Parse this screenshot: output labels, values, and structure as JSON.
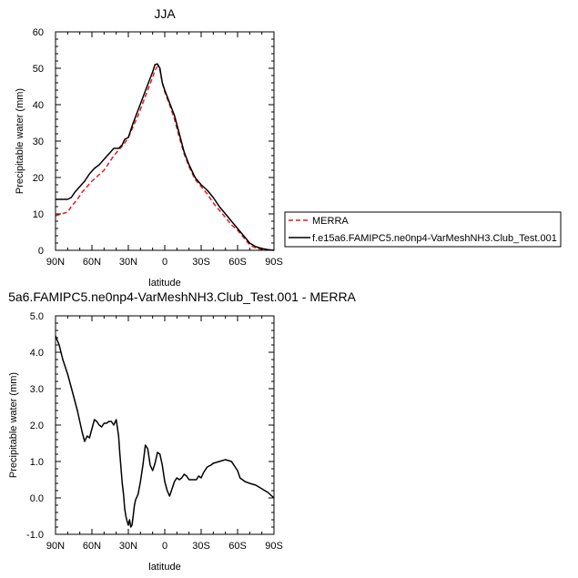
{
  "chart_data": [
    {
      "type": "line",
      "title": "JJA",
      "xlabel": "latitude",
      "ylabel": "Precipitable water (mm)",
      "xlim": [
        90,
        -90
      ],
      "ylim": [
        0,
        60
      ],
      "x_ticks": [
        90,
        60,
        30,
        0,
        -30,
        -60,
        -90
      ],
      "x_tick_labels": [
        "90N",
        "60N",
        "30N",
        "0",
        "30S",
        "60S",
        "90S"
      ],
      "y_ticks": [
        0,
        10,
        20,
        30,
        40,
        50,
        60
      ],
      "y_tick_labels": [
        "0",
        "10",
        "20",
        "30",
        "40",
        "50",
        "60"
      ],
      "legend": "right",
      "series": [
        {
          "name": "MERRA",
          "color": "#e8191c",
          "dash": "dashed",
          "x": [
            90,
            85,
            80,
            77,
            72,
            68,
            64,
            60,
            55,
            50,
            46,
            42,
            38,
            34,
            30,
            26,
            22,
            18,
            14,
            10,
            8,
            6,
            4,
            2,
            0,
            -4,
            -8,
            -12,
            -16,
            -20,
            -25,
            -30,
            -35,
            -40,
            -45,
            -50,
            -55,
            -60,
            -65,
            -70,
            -75,
            -80,
            -85,
            -90
          ],
          "y": [
            9.5,
            10,
            10.5,
            12,
            14,
            16,
            17.5,
            19,
            20.5,
            22,
            24,
            26,
            27.5,
            29,
            31,
            34,
            37,
            40.5,
            44,
            47.5,
            49.5,
            50.5,
            49.5,
            46,
            43.5,
            40,
            36,
            31,
            26.5,
            23,
            19.5,
            17.5,
            15.5,
            13,
            11,
            9,
            7,
            5.5,
            3.5,
            1.5,
            0.6,
            0.2,
            0.1,
            0
          ]
        },
        {
          "name": "f.e15a6.FAMIPC5.ne0np4-VarMeshNH3.Club_Test.001",
          "color": "#000000",
          "dash": "solid",
          "x": [
            90,
            85,
            80,
            77,
            74,
            70,
            66,
            62,
            58,
            54,
            50,
            46,
            42,
            38,
            35,
            33,
            30,
            26,
            22,
            18,
            14,
            10,
            8,
            6,
            4,
            2,
            0,
            -4,
            -8,
            -12,
            -16,
            -20,
            -25,
            -30,
            -35,
            -40,
            -45,
            -50,
            -55,
            -60,
            -65,
            -70,
            -75,
            -80,
            -85,
            -90
          ],
          "y": [
            14,
            14,
            14,
            14.5,
            16,
            17.5,
            19,
            21,
            22.5,
            23.5,
            25,
            26.5,
            28,
            28,
            29,
            30.5,
            31,
            35,
            38.5,
            42,
            45.5,
            49,
            51,
            51.2,
            50,
            46,
            44,
            40.5,
            37,
            32,
            27,
            23.5,
            20,
            18,
            16.5,
            14.5,
            12,
            10,
            8,
            6,
            4,
            2,
            1,
            0.5,
            0.2,
            0
          ]
        }
      ]
    },
    {
      "type": "line",
      "title": "5a6.FAMIPC5.ne0np4-VarMeshNH3.Club_Test.001 - MERRA",
      "xlabel": "latitude",
      "ylabel": "Precipitable water (mm)",
      "xlim": [
        90,
        -90
      ],
      "ylim": [
        -1,
        5
      ],
      "x_ticks": [
        90,
        60,
        30,
        0,
        -30,
        -60,
        -90
      ],
      "x_tick_labels": [
        "90N",
        "60N",
        "30N",
        "0",
        "30S",
        "60S",
        "90S"
      ],
      "y_ticks": [
        -1,
        0,
        1,
        2,
        3,
        4,
        5
      ],
      "y_tick_labels": [
        "-1.0",
        "0.0",
        "1.0",
        "2.0",
        "3.0",
        "4.0",
        "5.0"
      ],
      "series": [
        {
          "color": "#000000",
          "dash": "solid",
          "x": [
            90,
            87,
            84,
            80,
            76,
            72,
            68,
            66,
            64,
            62,
            60,
            58,
            56,
            54,
            52,
            50,
            48,
            46,
            44,
            42,
            40,
            38,
            37,
            36,
            35,
            34,
            33,
            32,
            31,
            30,
            29,
            28,
            27,
            26,
            25,
            24,
            22,
            20,
            18,
            16,
            14,
            12,
            10,
            8,
            6,
            4,
            2,
            0,
            -2,
            -4,
            -6,
            -8,
            -10,
            -12,
            -14,
            -16,
            -18,
            -20,
            -22,
            -24,
            -26,
            -28,
            -30,
            -32,
            -35,
            -38,
            -40,
            -45,
            -50,
            -55,
            -58,
            -60,
            -62,
            -64,
            -66,
            -70,
            -75,
            -80,
            -85,
            -90
          ],
          "y": [
            4.45,
            4.2,
            3.8,
            3.4,
            2.9,
            2.4,
            1.8,
            1.55,
            1.7,
            1.65,
            1.9,
            2.15,
            2.1,
            2.0,
            1.95,
            2.05,
            2.05,
            2.1,
            2.1,
            2.0,
            2.15,
            1.7,
            1.2,
            0.8,
            0.4,
            0.1,
            -0.3,
            -0.5,
            -0.65,
            -0.75,
            -0.6,
            -0.8,
            -0.75,
            -0.5,
            -0.2,
            -0.05,
            0.1,
            0.45,
            0.9,
            1.45,
            1.35,
            0.9,
            0.75,
            0.95,
            1.25,
            1.2,
            0.9,
            0.45,
            0.2,
            0.05,
            0.25,
            0.45,
            0.55,
            0.5,
            0.55,
            0.65,
            0.6,
            0.5,
            0.5,
            0.5,
            0.5,
            0.6,
            0.55,
            0.7,
            0.85,
            0.9,
            0.95,
            1.0,
            1.05,
            1.0,
            0.85,
            0.75,
            0.55,
            0.5,
            0.45,
            0.4,
            0.35,
            0.25,
            0.15,
            0
          ]
        }
      ]
    }
  ]
}
